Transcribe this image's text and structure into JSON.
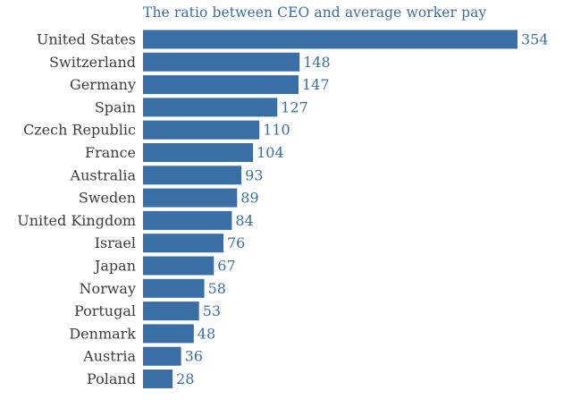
{
  "chart_data": {
    "type": "bar",
    "orientation": "horizontal",
    "title": "The ratio between CEO and average worker pay",
    "xlabel": "",
    "ylabel": "",
    "xlim": [
      0,
      354
    ],
    "grid": false,
    "legend": "none",
    "bar_color": "#3a6fa6",
    "label_color": "#3d3d3d",
    "value_color": "#3a6fa6",
    "categories": [
      "United States",
      "Switzerland",
      "Germany",
      "Spain",
      "Czech Republic",
      "France",
      "Australia",
      "Sweden",
      "United Kingdom",
      "Israel",
      "Japan",
      "Norway",
      "Portugal",
      "Denmark",
      "Austria",
      "Poland"
    ],
    "values": [
      354,
      148,
      147,
      127,
      110,
      104,
      93,
      89,
      84,
      76,
      67,
      58,
      53,
      48,
      36,
      28
    ]
  }
}
